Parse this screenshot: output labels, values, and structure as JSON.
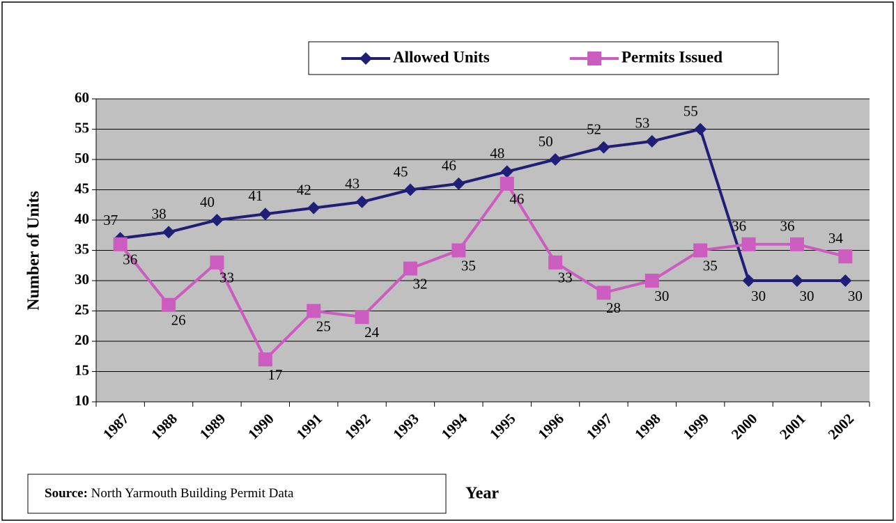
{
  "chart_data": {
    "type": "line",
    "y_axis_label": "Number of Units",
    "x_axis_label": "Year",
    "source_label": "Source:",
    "source_text": "North Yarmouth Building Permit Data",
    "categories": [
      "1987",
      "1988",
      "1989",
      "1990",
      "1991",
      "1992",
      "1993",
      "1994",
      "1995",
      "1996",
      "1997",
      "1998",
      "1999",
      "2000",
      "2001",
      "2002"
    ],
    "series": [
      {
        "name": "Allowed Units",
        "color": "#1f1f78",
        "marker": "diamond",
        "values": [
          37,
          38,
          40,
          41,
          42,
          43,
          45,
          46,
          48,
          50,
          52,
          53,
          55,
          30,
          30,
          30
        ]
      },
      {
        "name": "Permits Issued",
        "color": "#cc5cbf",
        "marker": "square",
        "values": [
          36,
          26,
          33,
          17,
          25,
          24,
          32,
          35,
          46,
          33,
          28,
          30,
          35,
          36,
          36,
          34
        ]
      }
    ],
    "ylim": [
      10,
      60
    ],
    "yticks": [
      10,
      15,
      20,
      25,
      30,
      35,
      40,
      45,
      50,
      55,
      60
    ],
    "grid": true,
    "plot_background": "#c0c0c0",
    "legend": "top"
  }
}
